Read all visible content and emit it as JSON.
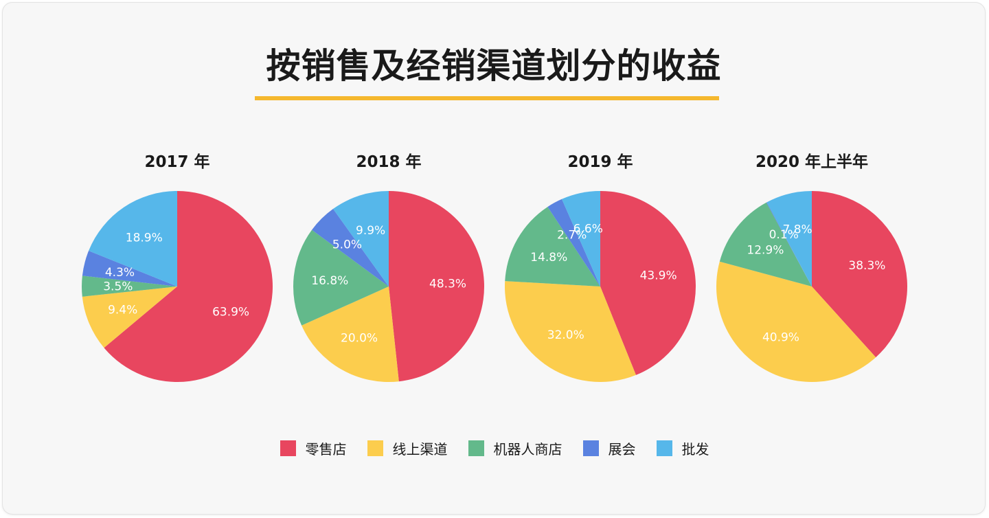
{
  "title": "按销售及经销渠道划分的收益",
  "colors": {
    "accent": "#f5b82e",
    "零售店": "#e8465f",
    "线上渠道": "#fccd4d",
    "机器人商店": "#63b98b",
    "展会": "#5a82e0",
    "批发": "#56b7ea"
  },
  "legend": [
    "零售店",
    "线上渠道",
    "机器人商店",
    "展会",
    "批发"
  ],
  "chart_data": [
    {
      "type": "pie",
      "title": "2017 年",
      "labels": [
        "零售店",
        "线上渠道",
        "机器人商店",
        "展会",
        "批发"
      ],
      "values": [
        63.9,
        9.4,
        3.5,
        4.3,
        18.9
      ],
      "value_labels": [
        "63.9%",
        "9.4%",
        "3.5%",
        "4.3%",
        "18.9%"
      ]
    },
    {
      "type": "pie",
      "title": "2018 年",
      "labels": [
        "零售店",
        "线上渠道",
        "机器人商店",
        "展会",
        "批发"
      ],
      "values": [
        48.3,
        20.0,
        16.8,
        5.0,
        9.9
      ],
      "value_labels": [
        "48.3%",
        "20.0%",
        "16.8%",
        "5.0%",
        "9.9%"
      ]
    },
    {
      "type": "pie",
      "title": "2019 年",
      "labels": [
        "零售店",
        "线上渠道",
        "机器人商店",
        "展会",
        "批发"
      ],
      "values": [
        43.9,
        32.0,
        14.8,
        2.7,
        6.6
      ],
      "value_labels": [
        "43.9%",
        "32.0%",
        "14.8%",
        "2.7%",
        "6.6%"
      ]
    },
    {
      "type": "pie",
      "title": "2020 年上半年",
      "labels": [
        "零售店",
        "线上渠道",
        "机器人商店",
        "展会",
        "批发"
      ],
      "values": [
        38.3,
        40.9,
        12.9,
        0.1,
        7.8
      ],
      "value_labels": [
        "38.3%",
        "40.9%",
        "12.9%",
        "0.1%",
        "7.8%"
      ]
    }
  ]
}
